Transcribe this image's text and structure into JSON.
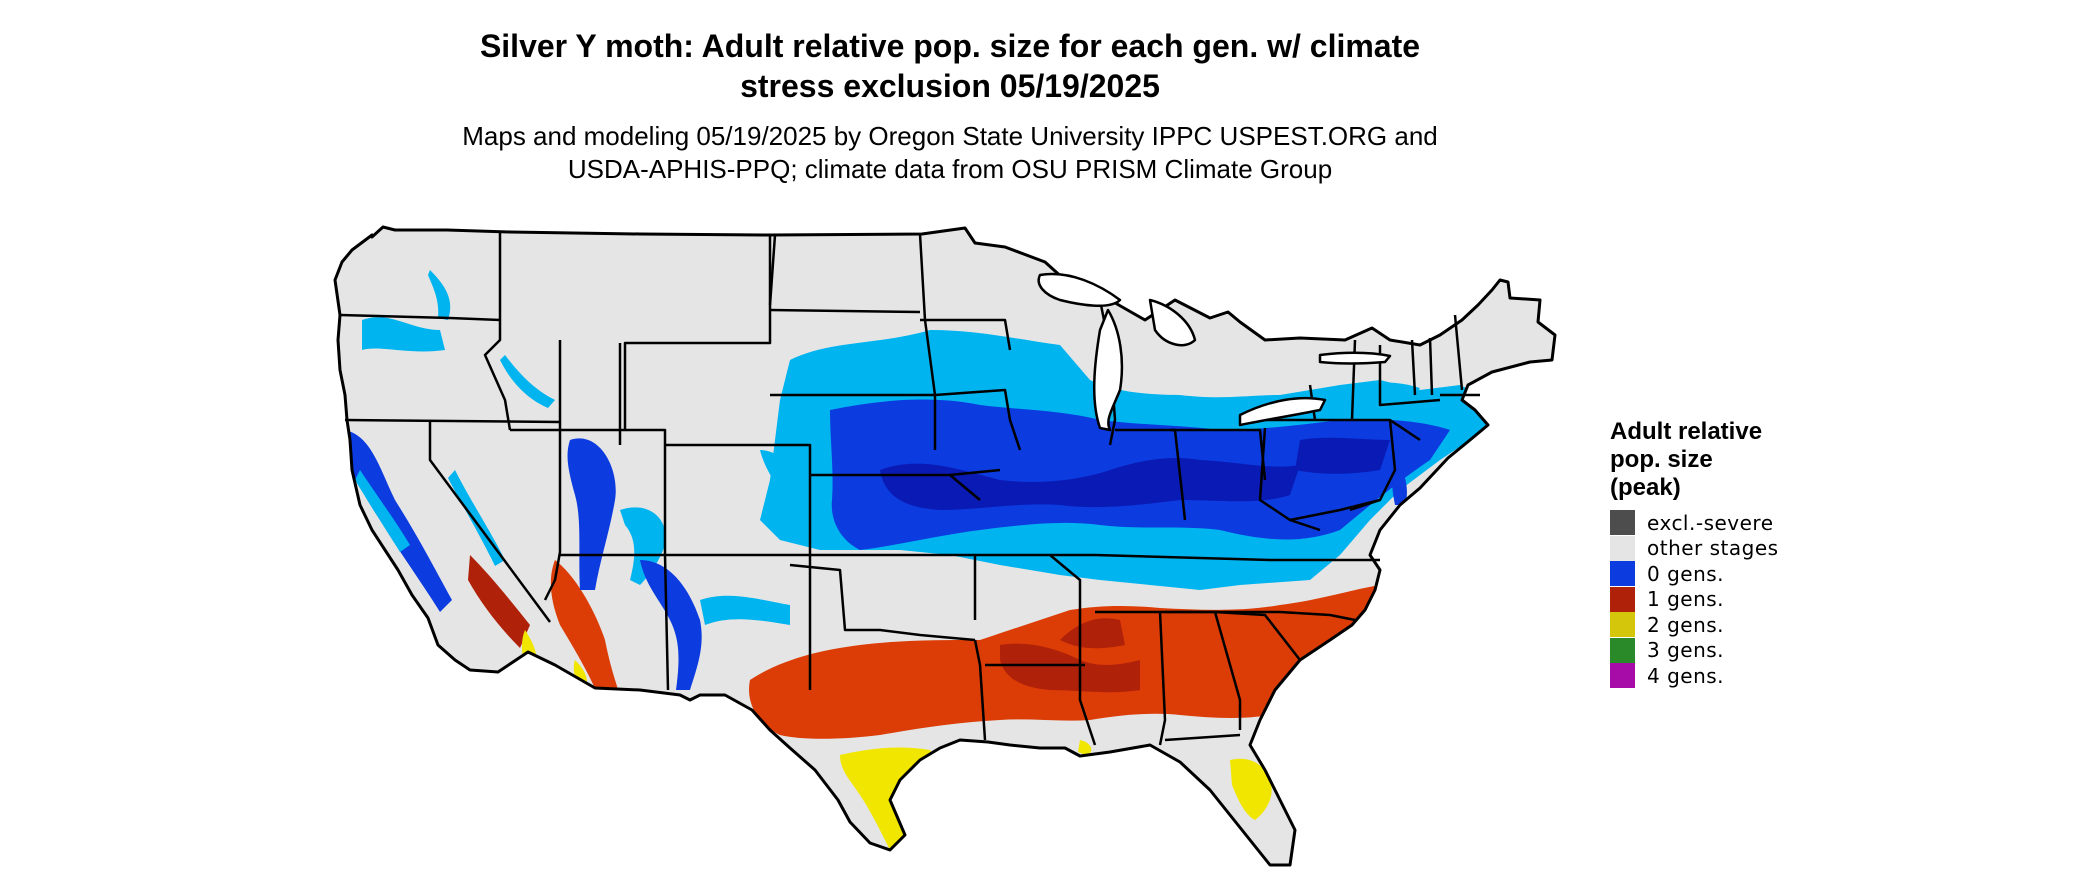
{
  "title": {
    "line1": "Silver Y moth: Adult relative pop. size for each gen. w/ climate",
    "line2": "stress exclusion 05/19/2025"
  },
  "subtitle": {
    "line1": "Maps and modeling 05/19/2025 by Oregon State University IPPC USPEST.ORG and",
    "line2": "USDA-APHIS-PPQ; climate data from OSU PRISM Climate Group"
  },
  "legend": {
    "title_line1": "Adult relative",
    "title_line2": "pop. size",
    "title_line3": "(peak)",
    "items": [
      {
        "label": "excl.-severe",
        "color": "#4d4d4d"
      },
      {
        "label": "other stages",
        "color": "#e5e5e5"
      },
      {
        "label": "0 gens.",
        "color": "#0c3be0"
      },
      {
        "label": "1 gens.",
        "color": "#b0210a"
      },
      {
        "label": "2 gens.",
        "color": "#d4c60a"
      },
      {
        "label": "3 gens.",
        "color": "#2a8a2a"
      },
      {
        "label": "4 gens.",
        "color": "#a80ca8"
      }
    ]
  },
  "colors": {
    "land": "#e5e5e5",
    "boundary": "#000000",
    "light_blue": "#00b4f0",
    "blue": "#0c3be0",
    "dark_blue": "#0a1ab4",
    "orange": "#dc3c05",
    "dark_red": "#b0210a",
    "yellow": "#f0e600",
    "green": "#2a8a2a"
  }
}
